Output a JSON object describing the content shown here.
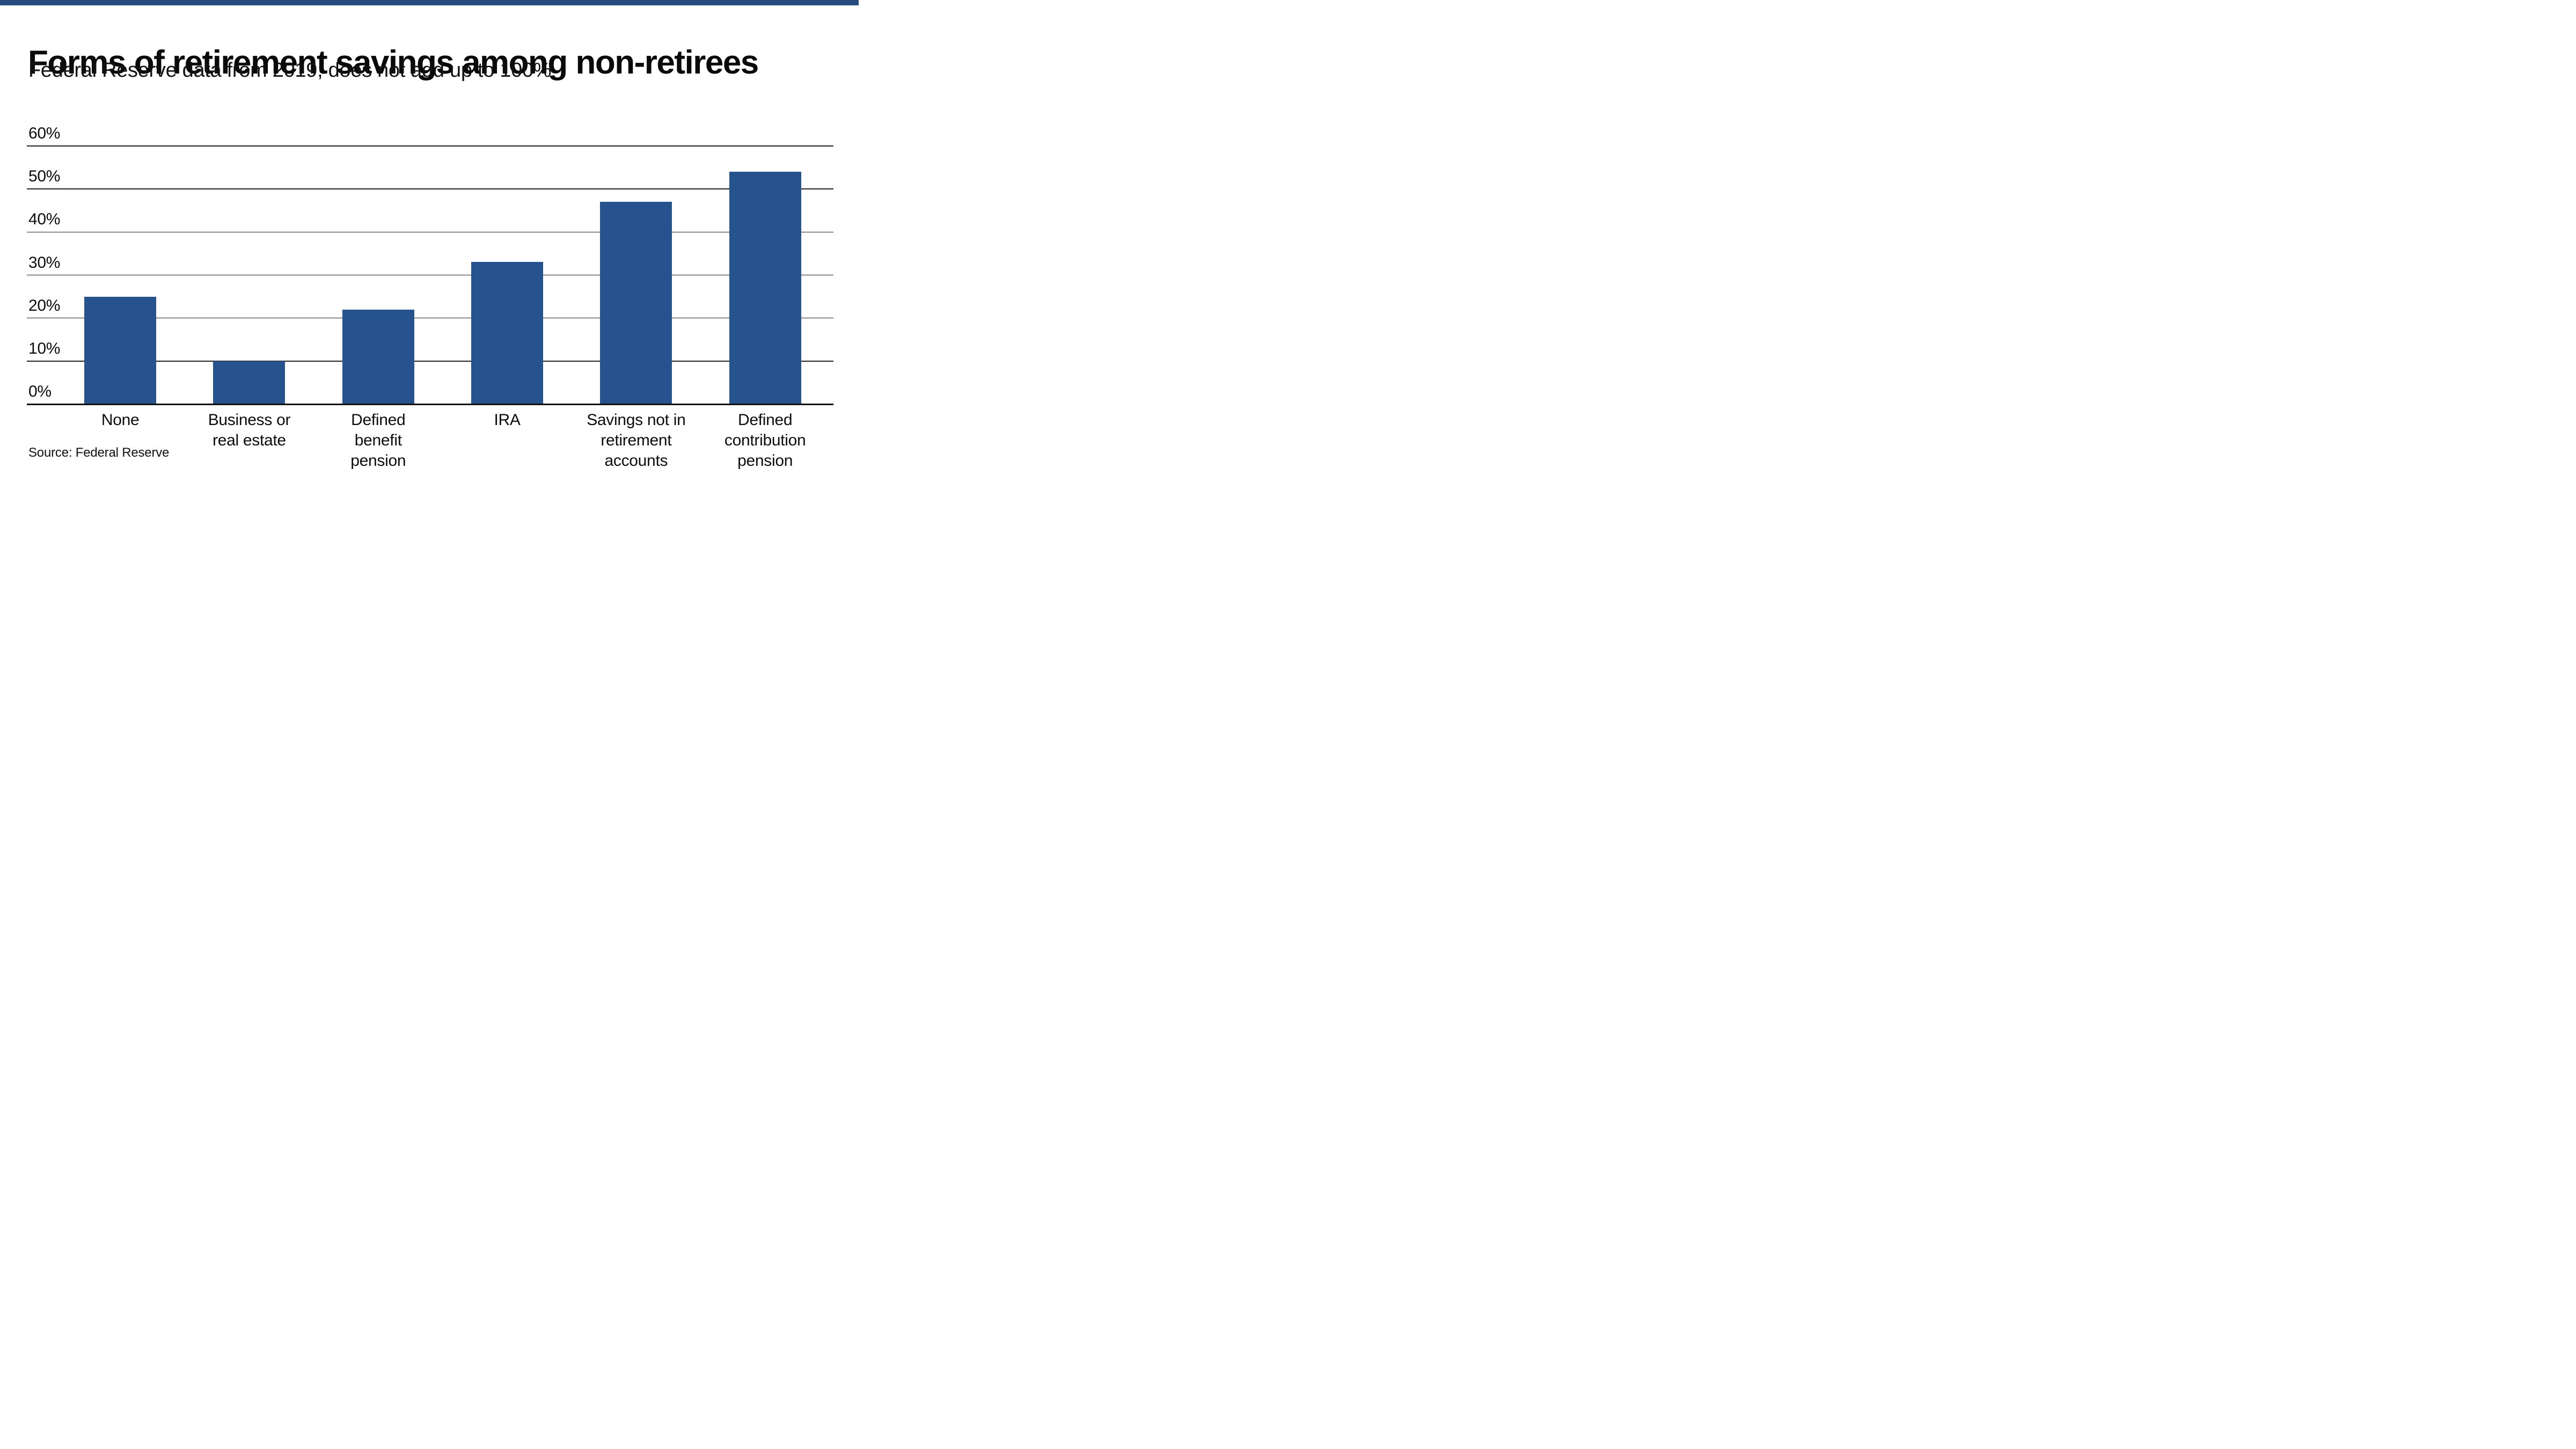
{
  "top_bar": {
    "color": "#274B7E"
  },
  "header": {
    "title": "Forms of retirement savings among non-retirees",
    "subtitle": "Federal Reserve data from 2019; does not add up to 100%"
  },
  "chart_data": {
    "type": "bar",
    "title": "Forms of retirement savings among non-retirees",
    "subtitle": "Federal Reserve data from 2019; does not add up to 100%",
    "categories": [
      "None",
      "Business or real estate",
      "Defined benefit pension",
      "IRA",
      "Savings not in retirement accounts",
      "Defined contribution pension"
    ],
    "category_lines": [
      [
        "None"
      ],
      [
        "Business or",
        "real estate"
      ],
      [
        "Defined",
        "benefit",
        "pension"
      ],
      [
        "IRA"
      ],
      [
        "Savings not in",
        "retirement",
        "accounts"
      ],
      [
        "Defined",
        "contribution",
        "pension"
      ]
    ],
    "category_slugs": [
      "none",
      "business-or-real-estate",
      "defined-benefit-pension",
      "ira",
      "savings-not-in-retirement-accounts",
      "defined-contribution-pension"
    ],
    "values": [
      25,
      10,
      22,
      33,
      47,
      54
    ],
    "unit": "%",
    "bar_color": "#26528E",
    "ylim": [
      0,
      60
    ],
    "yticks": [
      60,
      50,
      40,
      30,
      20,
      10,
      0
    ],
    "ytick_suffix": "%",
    "grid": true,
    "legend": false,
    "xlabel": "",
    "ylabel": ""
  },
  "footer": {
    "source": "Source: Federal Reserve"
  }
}
